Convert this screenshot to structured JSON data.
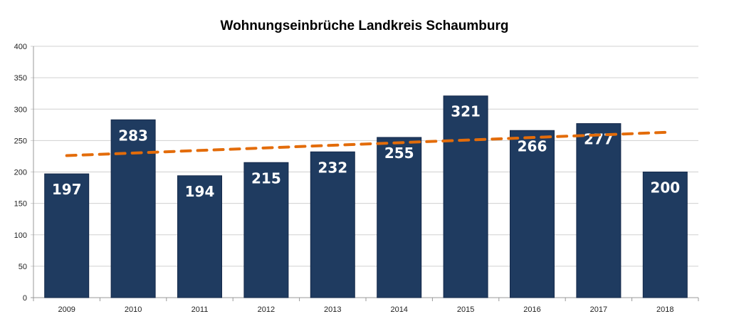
{
  "chart_data": {
    "type": "bar",
    "title": "Wohnungseinbrüche Landkreis Schaumburg",
    "xlabel": "",
    "ylabel": "",
    "categories": [
      "2009",
      "2010",
      "2011",
      "2012",
      "2013",
      "2014",
      "2015",
      "2016",
      "2017",
      "2018"
    ],
    "values": [
      197,
      283,
      194,
      215,
      232,
      255,
      321,
      266,
      277,
      200
    ],
    "data_labels": [
      "197",
      "283",
      "194",
      "215",
      "232",
      "255",
      "321",
      "266",
      "277",
      "200"
    ],
    "ylim": [
      0,
      400
    ],
    "yticks": [
      0,
      50,
      100,
      150,
      200,
      250,
      300,
      350,
      400
    ],
    "grid": true,
    "legend": "none",
    "trendline": {
      "type": "linear",
      "start": 226,
      "end": 263,
      "style": "dashed"
    },
    "colors": {
      "bar": "#1F3B60",
      "trend": "#E36C0A",
      "grid": "#D0D0D0"
    }
  }
}
